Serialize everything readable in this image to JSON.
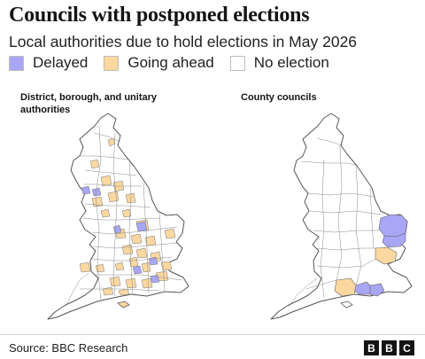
{
  "title": "Councils with postponed elections",
  "subtitle": "Local authorities due to hold elections in May 2026",
  "legend": {
    "items": [
      {
        "label": "Delayed",
        "color": "#a8a6f5"
      },
      {
        "label": "Going ahead",
        "color": "#fad8a0"
      },
      {
        "label": "No election",
        "color": "#ffffff"
      }
    ]
  },
  "panels": {
    "left_label": "District, borough, and unitary authorities",
    "right_label": "County councils"
  },
  "map": {
    "outline_color": "#555555",
    "boundary_color": "#8a8a8a"
  },
  "footer": {
    "source": "Source: BBC Research",
    "logo": [
      "B",
      "B",
      "C"
    ]
  }
}
